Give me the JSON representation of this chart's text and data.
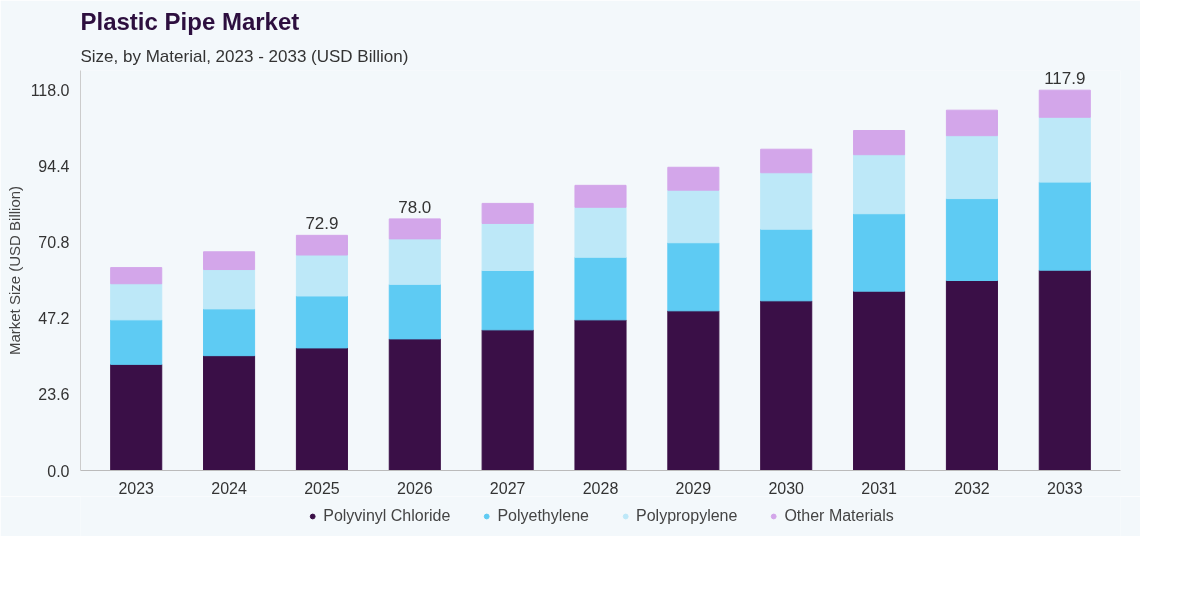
{
  "chart_data": {
    "type": "bar",
    "title": "Plastic Pipe Market",
    "subtitle": "Size, by Material, 2023 - 2033 (USD Billion)",
    "ylabel": "Market Size (USD Billion)",
    "categories": [
      "2023",
      "2024",
      "2025",
      "2026",
      "2027",
      "2028",
      "2029",
      "2030",
      "2031",
      "2032",
      "2033"
    ],
    "stacked": true,
    "series": [
      {
        "name": "Polyvinyl Chloride",
        "color": "#3a0f47",
        "values": [
          32.9,
          35.6,
          38.0,
          40.8,
          43.6,
          46.7,
          49.5,
          52.6,
          55.6,
          58.9,
          62.1
        ]
      },
      {
        "name": "Polyethylene",
        "color": "#5ecbf3",
        "values": [
          13.8,
          14.5,
          16.1,
          16.9,
          18.4,
          19.4,
          21.1,
          22.2,
          24.0,
          25.4,
          27.3
        ]
      },
      {
        "name": "Polypropylene",
        "color": "#bde8f8",
        "values": [
          11.2,
          12.2,
          12.7,
          14.1,
          14.6,
          15.5,
          16.3,
          17.5,
          18.3,
          19.5,
          20.1
        ]
      },
      {
        "name": "Other Materials",
        "color": "#d3a6ea",
        "values": [
          5.0,
          5.5,
          6.1,
          6.2,
          6.2,
          6.8,
          7.1,
          7.3,
          7.5,
          7.9,
          8.4
        ]
      }
    ],
    "totals": [
      null,
      null,
      "72.9",
      "78.0",
      null,
      null,
      null,
      null,
      null,
      null,
      "117.9"
    ],
    "ylim": [
      0,
      124
    ],
    "yticks": [
      {
        "value": 0,
        "label": "0.0"
      },
      {
        "value": 23.6,
        "label": "23.6"
      },
      {
        "value": 47.2,
        "label": "47.2"
      },
      {
        "value": 70.8,
        "label": "70.8"
      },
      {
        "value": 94.4,
        "label": "94.4"
      },
      {
        "value": 118,
        "label": "118.0"
      }
    ],
    "grid": false,
    "legend": "bottom"
  }
}
